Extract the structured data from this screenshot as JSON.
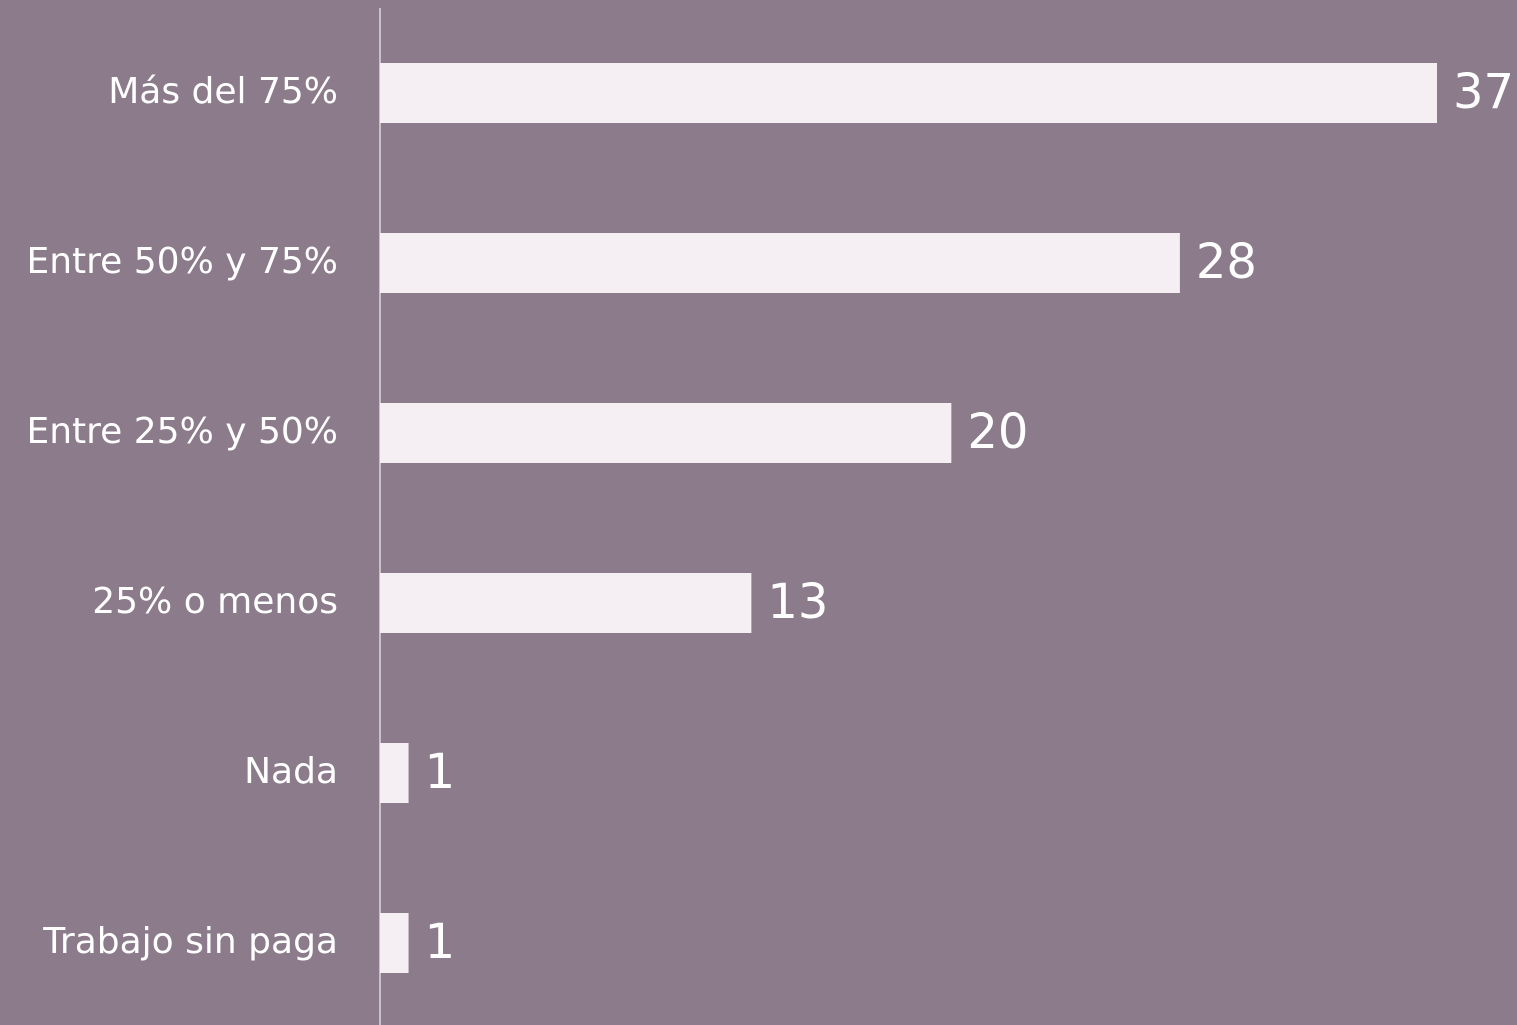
{
  "chart_data": {
    "type": "bar",
    "orientation": "horizontal",
    "categories": [
      "Más del 75%",
      "Entre 50% y 75%",
      "Entre 25% y 50%",
      "25% o menos",
      "Nada",
      "Trabajo sin paga"
    ],
    "values": [
      37,
      28,
      20,
      13,
      1,
      1
    ],
    "color": "#f5eef3"
  }
}
